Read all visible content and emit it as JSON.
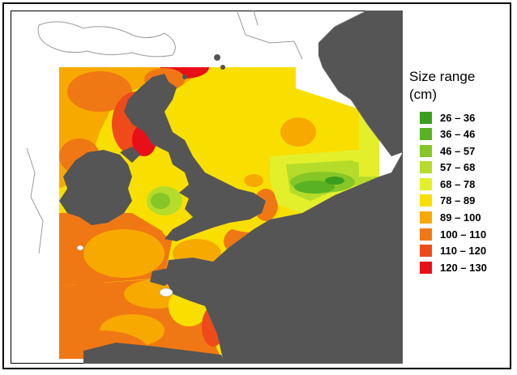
{
  "legend": {
    "title": "Size range\n(cm)",
    "items": [
      {
        "label": "26 – 36",
        "color": "#3a9e1e"
      },
      {
        "label": "36 – 46",
        "color": "#58b224"
      },
      {
        "label": "46 – 57",
        "color": "#86c627"
      },
      {
        "label": "57 – 68",
        "color": "#b5dc2a"
      },
      {
        "label": "68 – 78",
        "color": "#e4ef2b"
      },
      {
        "label": "78 – 89",
        "color": "#f9df00"
      },
      {
        "label": "89 – 100",
        "color": "#f7a900"
      },
      {
        "label": "100 – 110",
        "color": "#f07814"
      },
      {
        "label": "110 – 120",
        "color": "#ee4a1a"
      },
      {
        "label": "120 – 130",
        "color": "#e80f18"
      }
    ]
  },
  "map": {
    "land_color": "#555555",
    "coastline_color": "#9a9a9a",
    "frame_color": "#000000"
  }
}
